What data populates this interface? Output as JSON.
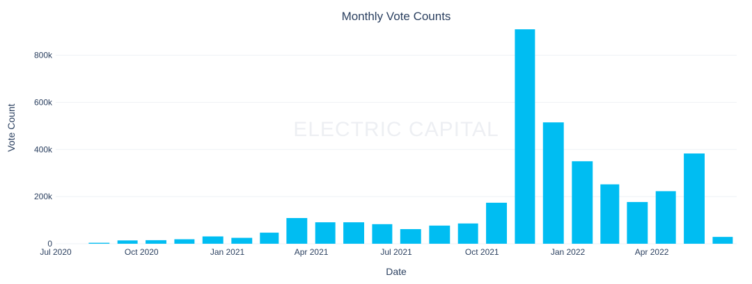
{
  "chart_data": {
    "type": "bar",
    "title": "Monthly Vote Counts",
    "xlabel": "Date",
    "ylabel": "Vote Count",
    "watermark": "ELECTRIC CAPITAL",
    "bar_color": "#00bdf2",
    "text_color": "#2a3f5f",
    "grid": true,
    "x_range": [
      "2020-07-01",
      "2022-07-01"
    ],
    "ylim": [
      0,
      940000
    ],
    "y_ticks": [
      {
        "value": 0,
        "label": "0"
      },
      {
        "value": 200000,
        "label": "200k"
      },
      {
        "value": 400000,
        "label": "400k"
      },
      {
        "value": 600000,
        "label": "600k"
      },
      {
        "value": 800000,
        "label": "800k"
      }
    ],
    "x_ticks": [
      {
        "date": "2020-07-01",
        "label": "Jul 2020"
      },
      {
        "date": "2020-10-01",
        "label": "Oct 2020"
      },
      {
        "date": "2021-01-01",
        "label": "Jan 2021"
      },
      {
        "date": "2021-04-01",
        "label": "Apr 2021"
      },
      {
        "date": "2021-07-01",
        "label": "Jul 2021"
      },
      {
        "date": "2021-10-01",
        "label": "Oct 2021"
      },
      {
        "date": "2022-01-01",
        "label": "Jan 2022"
      },
      {
        "date": "2022-04-01",
        "label": "Apr 2022"
      }
    ],
    "x": [
      "2020-08",
      "2020-09",
      "2020-10",
      "2020-11",
      "2020-12",
      "2021-01",
      "2021-02",
      "2021-03",
      "2021-04",
      "2021-05",
      "2021-06",
      "2021-07",
      "2021-08",
      "2021-09",
      "2021-10",
      "2021-11",
      "2021-12",
      "2022-01",
      "2022-02",
      "2022-03",
      "2022-04",
      "2022-05",
      "2022-06"
    ],
    "values": [
      4000,
      14000,
      15000,
      19000,
      31000,
      25000,
      47000,
      109000,
      91000,
      91000,
      83000,
      62000,
      77000,
      86000,
      174000,
      910000,
      515000,
      350000,
      252000,
      177000,
      223000,
      383000,
      29000
    ]
  }
}
